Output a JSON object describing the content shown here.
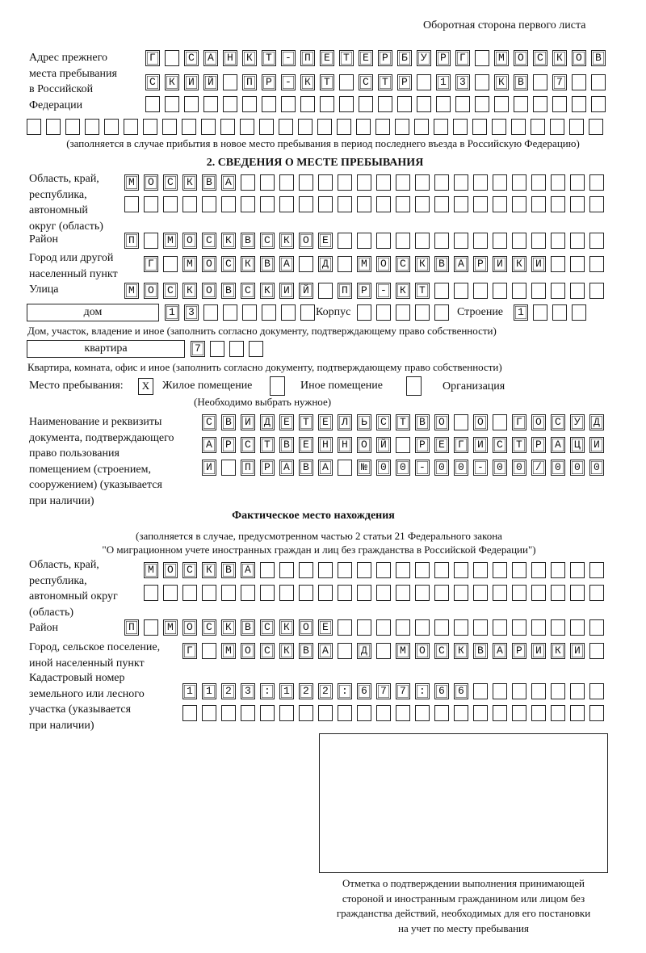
{
  "header": {
    "page_side": "Оборотная сторона первого листа"
  },
  "previous_address": {
    "label": "Адрес прежнего места пребывания в Российской Федерации",
    "label_lines": [
      "Адрес прежнего",
      "места пребывания",
      "в Российской",
      "Федерации"
    ],
    "rows": [
      "Г САНКТ-ПЕТЕРБУРГ МОСКОВ",
      "СКИЙ ПР-КТ СТР 13 КВ 7  ",
      "                        ",
      "                              "
    ],
    "note": "(заполняется в случае прибытия в новое место пребывания в период последнего въезда в Российскую Федерацию)"
  },
  "section2": {
    "title": "2. СВЕДЕНИЯ О МЕСТЕ ПРЕБЫВАНИЯ",
    "region": {
      "label_lines": [
        "Область, край,",
        "республика,",
        "автономный",
        "округ (область)"
      ],
      "rows": [
        "МОСКВА                   ",
        "                         "
      ]
    },
    "district": {
      "label": "Район",
      "rows": [
        "П МОСКВСКОЕ              "
      ]
    },
    "city": {
      "label_lines": [
        "Город или другой",
        "населенный пункт"
      ],
      "rows": [
        "Г МОСКВА Д МОСКВАРИКИ   "
      ]
    },
    "street": {
      "label": "Улица",
      "rows": [
        "МОСКОВСКИЙ ПР-КТ         "
      ]
    },
    "house": {
      "type": "дом",
      "number": "13      ",
      "korpus_label": "Корпус",
      "korpus": "     ",
      "stroenie_label": "Строение",
      "stroenie": "1   ",
      "note": "Дом, участок, владение и иное (заполнить согласно документу, подтверждающему право собственности)"
    },
    "apartment": {
      "type": "квартира",
      "number": "7   ",
      "note": "Квартира, комната, офис и иное (заполнить согласно документу, подтверждающему право собственности)"
    },
    "place": {
      "label": "Место пребывания:",
      "options": [
        {
          "label": "Жилое помещение",
          "checked": true,
          "mark": "X"
        },
        {
          "label": "Иное помещение",
          "checked": false,
          "mark": ""
        },
        {
          "label": "Организация",
          "checked": false,
          "mark": ""
        }
      ],
      "hint": "(Необходимо выбрать нужное)"
    },
    "document": {
      "label_lines": [
        "Наименование и реквизиты",
        "документа, подтверждающего",
        "право пользования",
        "помещением (строением,",
        "сооружением) (указывается",
        "при наличии)"
      ],
      "rows": [
        "СВИДЕТЕЛЬСТВО О ГОСУД",
        "АРСТВЕННОЙ РЕГИСТРАЦИ",
        "И ПРАВА №00-00-00/000"
      ]
    }
  },
  "actual": {
    "title": "Фактическое место нахождения",
    "note_lines": [
      "(заполняется в случае, предусмотренном частью 2 статьи 21 Федерального закона",
      "\"О миграционном учете иностранных граждан и лиц без гражданства в Российской Федерации\")"
    ],
    "region": {
      "label_lines": [
        "Область, край,",
        "республика,",
        "автономный округ",
        "(область)"
      ],
      "rows": [
        "МОСКВА                  ",
        "                        "
      ]
    },
    "district": {
      "label": "Район",
      "rows": [
        "П МОСКВСКОЕ              "
      ]
    },
    "city": {
      "label_lines": [
        "Город, сельское поселение,",
        "иной населенный пункт"
      ],
      "rows": [
        "Г МОСКВА Д МОСКВАРИКИ "
      ]
    },
    "cadastral": {
      "label_lines": [
        "Кадастровый номер",
        "земельного или лесного",
        "участка (указывается",
        "при наличии)"
      ],
      "rows": [
        "1123:122:677:66       ",
        "                      "
      ]
    }
  },
  "confirmation": {
    "caption_lines": [
      "Отметка о подтверждении выполнения принимающей",
      "стороной и иностранным гражданином или лицом без",
      "гражданства действий, необходимых для его постановки",
      "на учет по месту пребывания"
    ]
  }
}
